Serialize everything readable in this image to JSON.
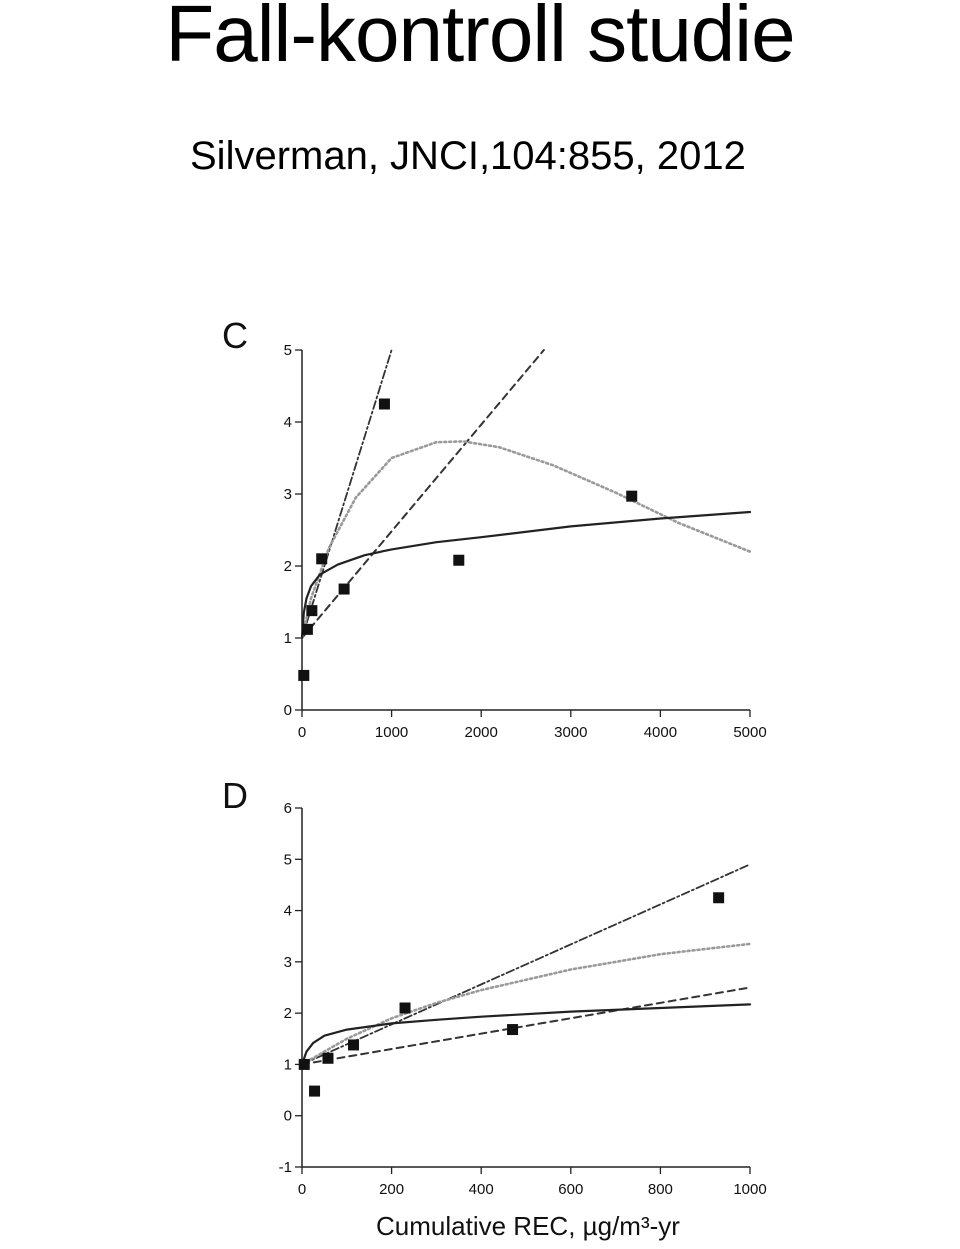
{
  "slide": {
    "title": "Fall-kontroll studie",
    "subtitle": "Silverman, JNCI,104:855, 2012"
  },
  "colors": {
    "axis": "#222222",
    "marker": "#111111",
    "solid_line": "#222222",
    "dashed_line": "#333333",
    "dotted_line": "#9a9a9a"
  },
  "chart_data": [
    {
      "type": "scatter",
      "panel_label": "C",
      "title": "",
      "xlabel": "",
      "ylabel": "",
      "xlim": [
        0,
        5000
      ],
      "ylim": [
        0,
        5
      ],
      "xticks": [
        0,
        1000,
        2000,
        3000,
        4000,
        5000
      ],
      "yticks": [
        0,
        1,
        2,
        3,
        4,
        5
      ],
      "points": [
        {
          "x": 20,
          "y": 0.48
        },
        {
          "x": 60,
          "y": 1.12
        },
        {
          "x": 110,
          "y": 1.38
        },
        {
          "x": 220,
          "y": 2.1
        },
        {
          "x": 470,
          "y": 1.68
        },
        {
          "x": 920,
          "y": 4.25
        },
        {
          "x": 1750,
          "y": 2.08
        },
        {
          "x": 3680,
          "y": 2.97
        }
      ],
      "curves": [
        {
          "style": "dashdot",
          "x": [
            0,
            1000
          ],
          "y": [
            1.0,
            5.0
          ]
        },
        {
          "style": "dashed",
          "x": [
            0,
            2700
          ],
          "y": [
            1.0,
            5.0
          ]
        },
        {
          "style": "dotted",
          "x": [
            0,
            100,
            300,
            600,
            1000,
            1500,
            1800,
            2200,
            2800,
            3500,
            4200,
            5000
          ],
          "y": [
            1.0,
            1.55,
            2.25,
            2.95,
            3.5,
            3.72,
            3.73,
            3.65,
            3.4,
            3.02,
            2.6,
            2.2
          ]
        },
        {
          "style": "solid",
          "x": [
            0,
            20,
            50,
            100,
            200,
            400,
            700,
            1000,
            1500,
            2000,
            3000,
            4000,
            5000
          ],
          "y": [
            1.0,
            1.35,
            1.55,
            1.72,
            1.88,
            2.02,
            2.15,
            2.23,
            2.33,
            2.4,
            2.55,
            2.66,
            2.75
          ]
        }
      ]
    },
    {
      "type": "scatter",
      "panel_label": "D",
      "title": "",
      "xlabel": "Cumulative REC, µg/m³-yr",
      "ylabel": "",
      "xlim": [
        0,
        1000
      ],
      "ylim": [
        -1,
        6
      ],
      "xticks": [
        0,
        200,
        400,
        600,
        800,
        1000
      ],
      "yticks": [
        -1,
        0,
        1,
        2,
        3,
        4,
        5,
        6
      ],
      "points": [
        {
          "x": 5,
          "y": 1.0
        },
        {
          "x": 28,
          "y": 0.48
        },
        {
          "x": 58,
          "y": 1.12
        },
        {
          "x": 115,
          "y": 1.38
        },
        {
          "x": 230,
          "y": 2.1
        },
        {
          "x": 470,
          "y": 1.68
        },
        {
          "x": 930,
          "y": 4.25
        }
      ],
      "curves": [
        {
          "style": "dashdot",
          "x": [
            0,
            1000
          ],
          "y": [
            1.0,
            4.9
          ]
        },
        {
          "style": "dashed",
          "x": [
            0,
            1000
          ],
          "y": [
            1.0,
            2.5
          ]
        },
        {
          "style": "dotted",
          "x": [
            0,
            100,
            200,
            300,
            400,
            500,
            600,
            700,
            800,
            900,
            1000
          ],
          "y": [
            1.0,
            1.5,
            1.9,
            2.2,
            2.45,
            2.65,
            2.85,
            3.0,
            3.15,
            3.25,
            3.35
          ]
        },
        {
          "style": "solid",
          "x": [
            0,
            10,
            25,
            50,
            100,
            200,
            300,
            400,
            600,
            800,
            1000
          ],
          "y": [
            1.0,
            1.25,
            1.42,
            1.56,
            1.68,
            1.8,
            1.87,
            1.93,
            2.03,
            2.1,
            2.17
          ]
        }
      ]
    }
  ]
}
